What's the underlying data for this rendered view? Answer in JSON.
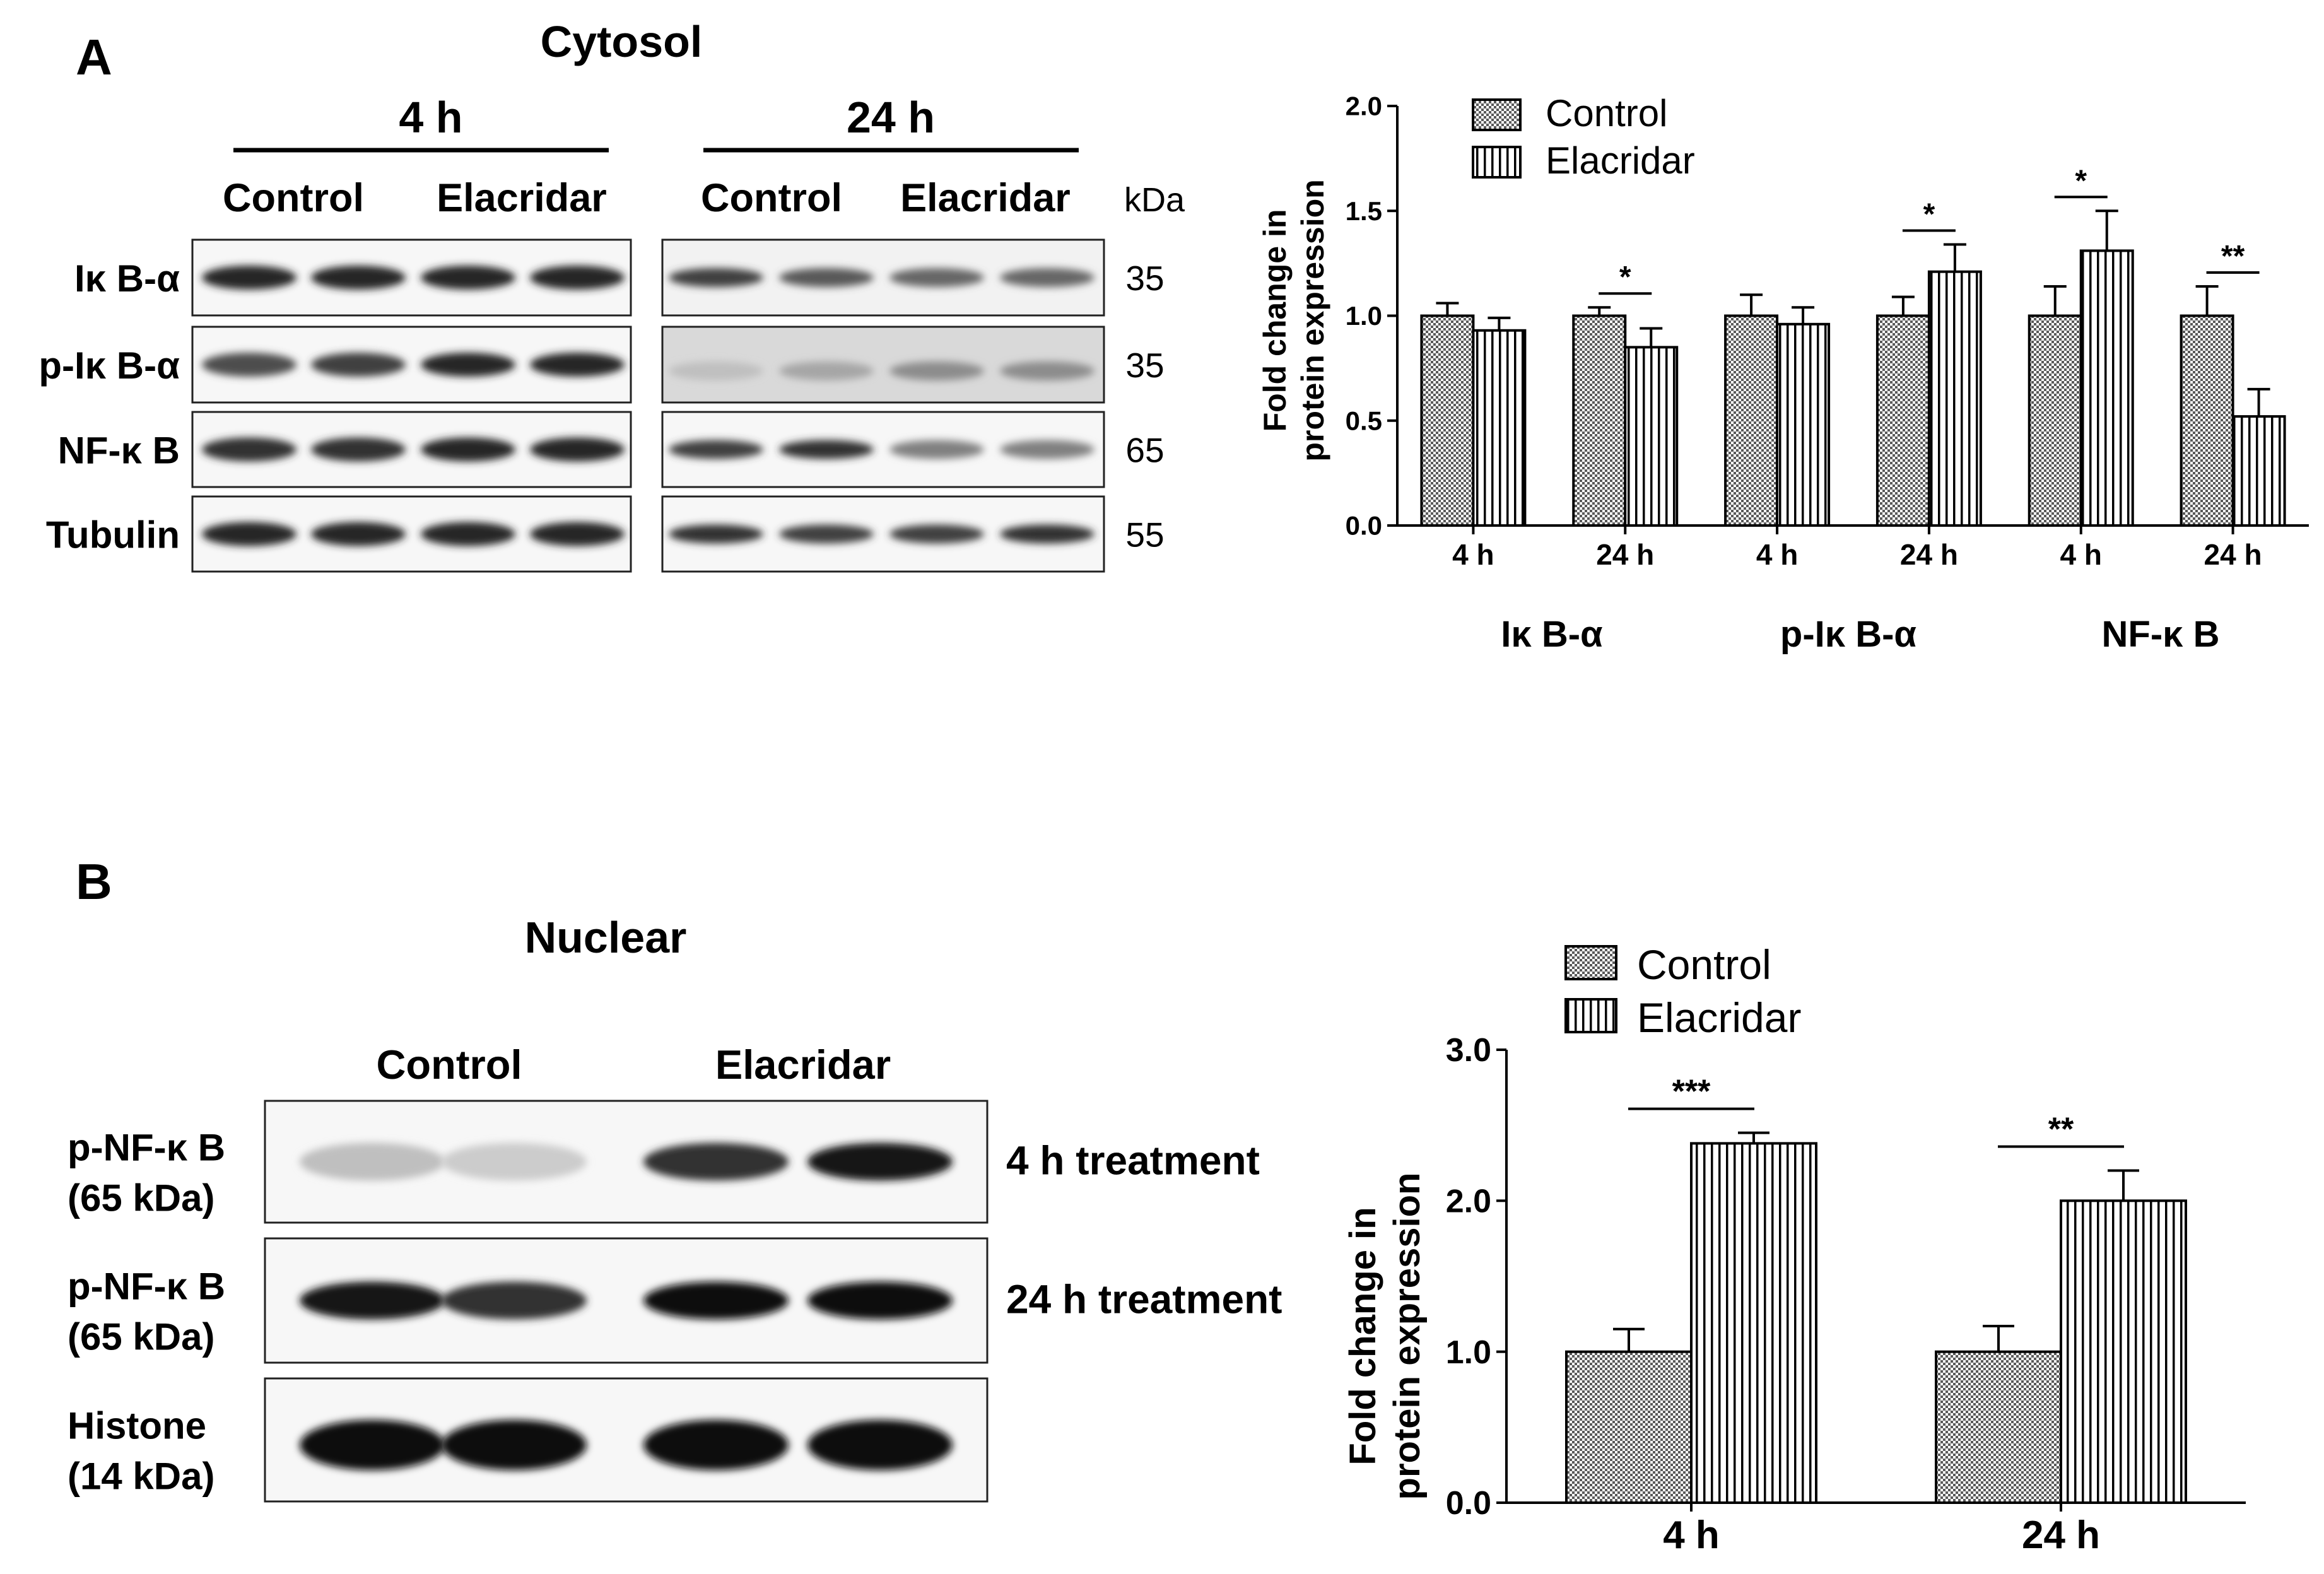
{
  "panel_a": {
    "letter": "A",
    "title": "Cytosol",
    "time_labels": [
      "4 h",
      "24 h"
    ],
    "group_labels": [
      "Control",
      "Elacridar",
      "Control",
      "Elacridar"
    ],
    "kda_header": "kDa",
    "rows": [
      {
        "label": "Iκ B-α",
        "kda": "35",
        "intensity_4h": [
          0.85,
          0.85,
          0.85,
          0.85
        ],
        "intensity_24h": [
          0.75,
          0.65,
          0.6,
          0.6
        ],
        "bg_24h": "#f2f2f2"
      },
      {
        "label": "p-Iκ B-α",
        "kda": "35",
        "intensity_4h": [
          0.7,
          0.75,
          0.85,
          0.85
        ],
        "intensity_24h": [
          0.25,
          0.35,
          0.45,
          0.45
        ],
        "bg_24h": "#d9d9d9"
      },
      {
        "label": "NF-κ B",
        "kda": "65",
        "intensity_4h": [
          0.8,
          0.8,
          0.85,
          0.85
        ],
        "intensity_24h": [
          0.75,
          0.8,
          0.5,
          0.5
        ],
        "bg_24h": "#f7f7f7"
      },
      {
        "label": "Tubulin",
        "kda": "55",
        "intensity_4h": [
          0.85,
          0.85,
          0.85,
          0.85
        ],
        "intensity_24h": [
          0.8,
          0.75,
          0.75,
          0.8
        ],
        "bg_24h": "#f7f7f7"
      }
    ]
  },
  "panel_b": {
    "letter": "B",
    "title": "Nuclear",
    "group_labels": [
      "Control",
      "Elacridar"
    ],
    "rows": [
      {
        "label_line1": "p-NF-κ B",
        "label_line2": "(65 kDa)",
        "right_label": "4 h treatment",
        "intensity": [
          0.25,
          0.2,
          0.8,
          0.9
        ]
      },
      {
        "label_line1": "p-NF-κ B",
        "label_line2": "(65 kDa)",
        "right_label": "24 h treatment",
        "intensity": [
          0.9,
          0.8,
          0.95,
          0.95
        ]
      },
      {
        "label_line1": "Histone",
        "label_line2": "(14 kDa)",
        "right_label": "",
        "intensity": [
          0.95,
          0.95,
          0.95,
          0.95
        ]
      }
    ]
  },
  "chart_data": [
    {
      "type": "bar",
      "panel": "A",
      "ylabel": "Fold change in\nprotein expression",
      "ylim": [
        0.0,
        2.0
      ],
      "yticks": [
        "0.0",
        "0.5",
        "1.0",
        "1.5",
        "2.0"
      ],
      "categories": [
        "4 h",
        "24 h",
        "4 h",
        "24 h",
        "4 h",
        "24 h"
      ],
      "group_labels": [
        "Iκ B-α",
        "p-Iκ B-α",
        "NF-κ B"
      ],
      "series": [
        {
          "name": "Control",
          "values": [
            1.0,
            1.0,
            1.0,
            1.0,
            1.0,
            1.0
          ],
          "errors": [
            0.06,
            0.04,
            0.1,
            0.09,
            0.14,
            0.14
          ],
          "pattern": "checker"
        },
        {
          "name": "Elacridar",
          "values": [
            0.93,
            0.85,
            0.96,
            1.21,
            1.31,
            0.52
          ],
          "errors": [
            0.06,
            0.09,
            0.08,
            0.13,
            0.19,
            0.13
          ],
          "pattern": "vstripe"
        }
      ],
      "significance": [
        "",
        "*",
        "",
        "*",
        "*",
        "**"
      ],
      "legend": "top-left",
      "grid": false
    },
    {
      "type": "bar",
      "panel": "B",
      "ylabel": "Fold change in\nprotein expression",
      "ylim": [
        0.0,
        3.0
      ],
      "yticks": [
        "0.0",
        "1.0",
        "2.0",
        "3.0"
      ],
      "categories": [
        "4 h",
        "24 h"
      ],
      "series": [
        {
          "name": "Control",
          "values": [
            1.0,
            1.0
          ],
          "errors": [
            0.15,
            0.17
          ],
          "pattern": "checker"
        },
        {
          "name": "Elacridar",
          "values": [
            2.38,
            2.0
          ],
          "errors": [
            0.07,
            0.2
          ],
          "pattern": "vstripe"
        }
      ],
      "significance": [
        "***",
        "**"
      ],
      "legend": "top-left",
      "grid": false
    }
  ]
}
